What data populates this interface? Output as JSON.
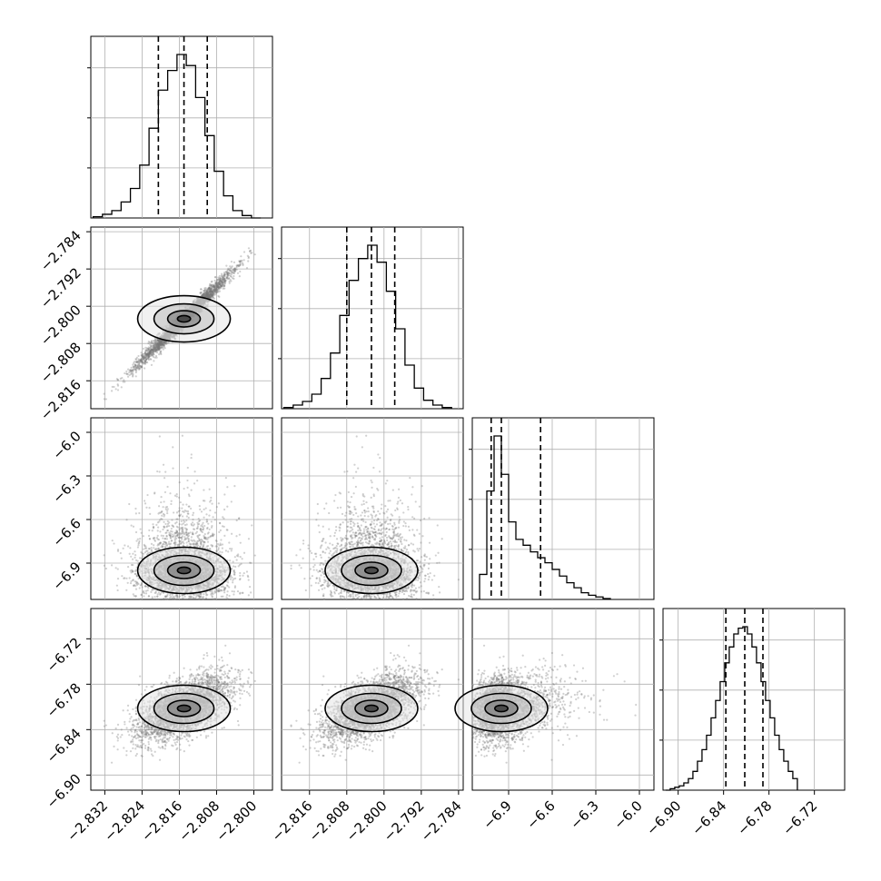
{
  "chart_data": {
    "type": "corner",
    "parameters": [
      {
        "range": [
          -2.835,
          -2.796
        ],
        "ticks": [
          -2.832,
          -2.824,
          -2.816,
          -2.808,
          -2.8
        ],
        "tick_labels": [
          "−2.832",
          "−2.824",
          "−2.816",
          "−2.808",
          "−2.800"
        ],
        "quantiles": [
          -2.8205,
          -2.815,
          -2.81
        ],
        "histogram": {
          "bin_edges": [
            -2.8345,
            -2.8325,
            -2.8305,
            -2.8285,
            -2.8265,
            -2.8245,
            -2.8225,
            -2.8205,
            -2.8185,
            -2.8165,
            -2.8145,
            -2.8125,
            -2.8105,
            -2.8085,
            -2.8065,
            -2.8045,
            -2.8025,
            -2.8005,
            -2.7985
          ],
          "counts": [
            1,
            3,
            6,
            13,
            24,
            43,
            73,
            104,
            120,
            133,
            124,
            98,
            67,
            38,
            18,
            6,
            2,
            0
          ]
        }
      },
      {
        "range": [
          -2.822,
          -2.783
        ],
        "ticks": [
          -2.816,
          -2.808,
          -2.8,
          -2.792,
          -2.784
        ],
        "tick_labels": [
          "−2.816",
          "−2.808",
          "−2.800",
          "−2.792",
          "−2.784"
        ],
        "quantiles": [
          -2.808,
          -2.8027,
          -2.7977
        ],
        "histogram": {
          "bin_edges": [
            -2.8215,
            -2.8195,
            -2.8175,
            -2.8155,
            -2.8135,
            -2.8115,
            -2.8095,
            -2.8075,
            -2.8055,
            -2.8035,
            -2.8015,
            -2.7995,
            -2.7975,
            -2.7955,
            -2.7935,
            -2.7915,
            -2.7895,
            -2.7875,
            -2.7855
          ],
          "counts": [
            1,
            3,
            6,
            12,
            25,
            46,
            77,
            106,
            124,
            135,
            121,
            97,
            66,
            36,
            17,
            7,
            3,
            1
          ]
        }
      },
      {
        "range": [
          -7.15,
          -5.9
        ],
        "ticks": [
          -6.9,
          -6.6,
          -6.3,
          -6.0
        ],
        "tick_labels": [
          "−6.9",
          "−6.6",
          "−6.3",
          "−6.0"
        ],
        "quantiles": [
          -7.02,
          -6.95,
          -6.68
        ],
        "histogram": {
          "bin_edges": [
            -7.1,
            -7.05,
            -7.0,
            -6.95,
            -6.9,
            -6.85,
            -6.8,
            -6.75,
            -6.7,
            -6.65,
            -6.6,
            -6.55,
            -6.5,
            -6.45,
            -6.4,
            -6.35,
            -6.3,
            -6.25,
            -6.2
          ],
          "counts": [
            30,
            130,
            196,
            150,
            93,
            72,
            65,
            57,
            50,
            44,
            36,
            28,
            20,
            14,
            8,
            5,
            3,
            1
          ]
        }
      },
      {
        "range": [
          -6.92,
          -6.68
        ],
        "ticks": [
          -6.9,
          -6.84,
          -6.78,
          -6.72
        ],
        "tick_labels": [
          "−6.90",
          "−6.84",
          "−6.78",
          "−6.72"
        ],
        "quantiles": [
          -6.837,
          -6.812,
          -6.788
        ],
        "histogram": {
          "bin_edges": [
            -6.9165,
            -6.9105,
            -6.9045,
            -6.8985,
            -6.8925,
            -6.8865,
            -6.8805,
            -6.8745,
            -6.8685,
            -6.8625,
            -6.8565,
            -6.8505,
            -6.8445,
            -6.8385,
            -6.8325,
            -6.8265,
            -6.8205,
            -6.8145,
            -6.8085,
            -6.8025,
            -6.7965,
            -6.7905,
            -6.7845,
            -6.7785,
            -6.7725,
            -6.7665,
            -6.7605,
            -6.7545,
            -6.7485,
            -6.7425
          ],
          "counts": [
            0,
            1,
            2,
            3,
            5,
            8,
            13,
            20,
            28,
            38,
            50,
            62,
            75,
            88,
            99,
            108,
            112,
            113,
            108,
            99,
            88,
            75,
            62,
            50,
            38,
            28,
            20,
            13,
            8
          ]
        }
      }
    ]
  }
}
